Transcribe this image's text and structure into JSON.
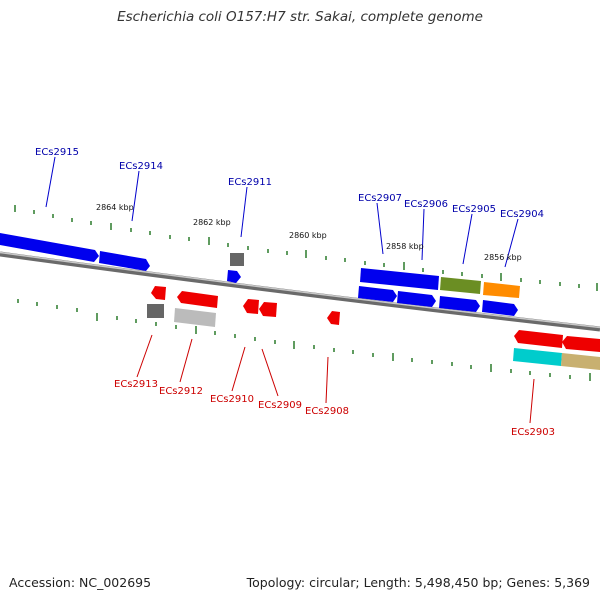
{
  "title": "Escherichia coli O157:H7 str. Sakai, complete genome",
  "footer": {
    "accession": "Accession: NC_002695",
    "info": "Topology: circular; Length: 5,498,450 bp; Genes: 5,369"
  },
  "colors": {
    "forward_strand": "#0000ee",
    "reverse_strand": "#ee0000",
    "tick": "#2a7a2a",
    "backbone": "#888888",
    "gene_types": [
      "#0000ee",
      "#ee0000",
      "#666666",
      "#bbbbbb",
      "#6b8e23",
      "#ff8c00",
      "#00cccc",
      "#c8b070"
    ]
  },
  "scale_labels": [
    "2864 kbp",
    "2862 kbp",
    "2860 kbp",
    "2858 kbp",
    "2856 kbp"
  ],
  "forward_genes": [
    "ECs2915",
    "ECs2914",
    "ECs2911",
    "ECs2907",
    "ECs2906",
    "ECs2905",
    "ECs2904"
  ],
  "reverse_genes": [
    "ECs2913",
    "ECs2912",
    "ECs2910",
    "ECs2909",
    "ECs2908",
    "ECs2903"
  ]
}
